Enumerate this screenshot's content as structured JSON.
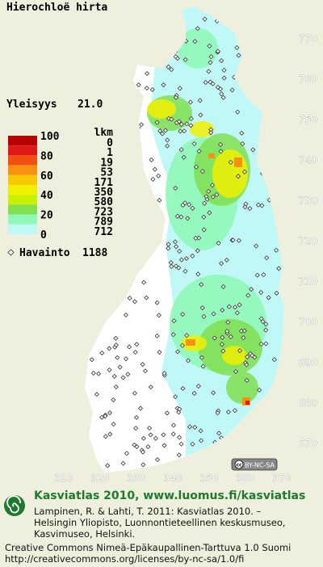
{
  "title": "Hierochloë hirta",
  "frequency": {
    "label": "Yleisyys",
    "value": "21.0"
  },
  "legend": {
    "percent_labels": [
      100,
      80,
      60,
      40,
      20,
      0
    ],
    "count_header": "lkm",
    "counts": [
      0,
      1,
      19,
      53,
      171,
      350,
      580,
      723,
      789,
      712
    ],
    "colors": [
      "#b80000",
      "#e01818",
      "#f05010",
      "#f89010",
      "#f8c800",
      "#f0f000",
      "#c8f000",
      "#80e050",
      "#90f8b8",
      "#c0f8f8"
    ]
  },
  "observations": {
    "label": "Havainto",
    "count": 1188
  },
  "northing_ticks": [
    770,
    760,
    750,
    740,
    730,
    720,
    710,
    700,
    690,
    680,
    670
  ],
  "easting_ticks": [
    310,
    320,
    330,
    340,
    350,
    360,
    370
  ],
  "license_badge": "BY-NC-SA",
  "footer": {
    "title": "Kasviatlas 2010, www.luomus.fi/kasviatlas",
    "citation": [
      "Lampinen, R. & Lahti, T. 2011: Kasviatlas 2010. –",
      "Helsingin Yliopisto, Luonnontieteellinen keskusmuseo,",
      "Kasvimuseo, Helsinki."
    ],
    "license": [
      "Creative Commons Nimeä-Epäkaupallinen-Tarttuva 1.0 Suomi",
      "http://creativecommons.org/licenses/by-nc-sa/1.0/fi"
    ]
  }
}
